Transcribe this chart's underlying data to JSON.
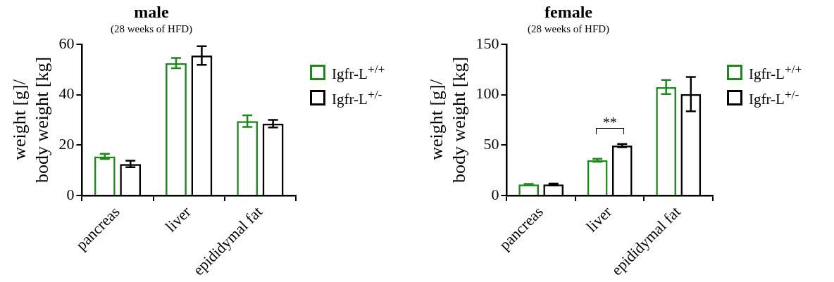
{
  "chart_data": [
    {
      "type": "bar",
      "title": "male",
      "subtitle": "(28 weeks of HFD)",
      "ylabel": "weight [g]/\nbody weight [kg]",
      "categories": [
        "pancreas",
        "liver",
        "epididymal fat"
      ],
      "series": [
        {
          "name": "Igfr-L$^{+/+}$",
          "color": "#1a8a1a",
          "values": [
            15.5,
            52.5,
            29.5
          ],
          "errors": [
            1,
            2,
            2.3
          ]
        },
        {
          "name": "Igfr-L$^{+/-}$",
          "color": "#000000",
          "values": [
            12.5,
            55.5,
            28.5
          ],
          "errors": [
            1.3,
            3.7,
            1.5
          ]
        }
      ],
      "ylim": [
        0,
        60
      ],
      "yticks": [
        0,
        20,
        40,
        60
      ],
      "grid": false,
      "legend": "right"
    },
    {
      "type": "bar",
      "title": "female",
      "subtitle": "(28 weeks of HFD)",
      "ylabel": "weight [g]/\nbody weight [kg]",
      "categories": [
        "pancreas",
        "liver",
        "epididymal fat"
      ],
      "series": [
        {
          "name": "Igfr-L$^{+/+}$",
          "color": "#1a8a1a",
          "values": [
            11,
            35,
            107.5
          ],
          "errors": [
            0.5,
            1.5,
            7
          ]
        },
        {
          "name": "Igfr-L$^{+/-}$",
          "color": "#000000",
          "values": [
            11,
            49.5,
            100.5
          ],
          "errors": [
            0.8,
            1.5,
            17
          ]
        }
      ],
      "ylim": [
        0,
        150
      ],
      "yticks": [
        0,
        50,
        100,
        150
      ],
      "grid": false,
      "legend": "right",
      "annotations": [
        "**"
      ]
    }
  ]
}
